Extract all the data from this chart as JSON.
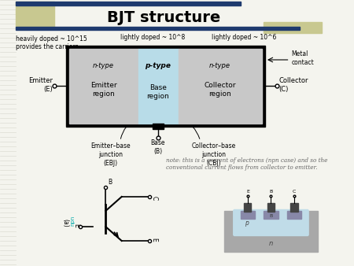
{
  "title": "BJT structure",
  "title_fontsize": 14,
  "title_fontweight": "bold",
  "bg_color": "#f4f4ee",
  "header_bar_color": "#1e3a6e",
  "olive_rect_color": "#c8c890",
  "emitter_region_color": "#c8c8c8",
  "base_region_color": "#b8dce8",
  "labels": {
    "heavily_doped": "heavily doped ~ 10^15\nprovides the carriers",
    "lightly_doped_base": "lightly doped ~ 10^8",
    "lightly_doped_col": "lightly doped ~ 10^6",
    "emitter_label": "Emitter\n(E)",
    "collector_label": "Collector\n(C)",
    "metal_contact": "Metal\ncontact",
    "ebj_label": "Emitter–base\njunction\n(EBJ)",
    "base_label": "Base\n(B)",
    "cbj_label": "Collector–base\njunction\n(CBJ)",
    "note": "note: this is a current of electrons (npn case) and so the\nconventional current flows from collector to emitter."
  }
}
